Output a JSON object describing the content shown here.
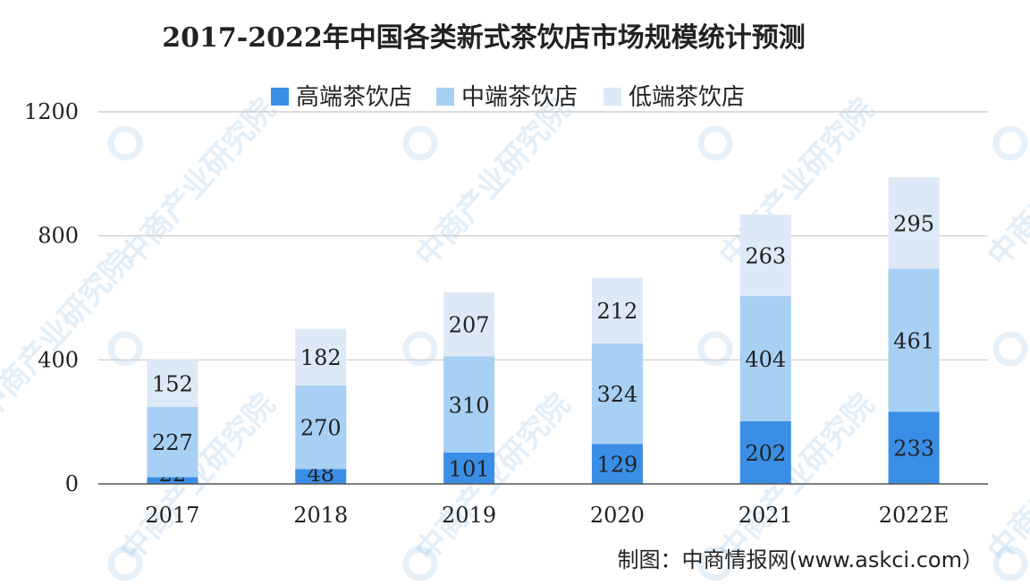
{
  "chart_data": {
    "type": "bar",
    "stacked": true,
    "title": "2017-2022年中国各类新式茶饮店市场规模统计预测",
    "categories": [
      "2017",
      "2018",
      "2019",
      "2020",
      "2021",
      "2022E"
    ],
    "series": [
      {
        "name": "高端茶饮店",
        "values": [
          22,
          48,
          101,
          129,
          202,
          233
        ],
        "color": "#3a8ee6"
      },
      {
        "name": "中端茶饮店",
        "values": [
          227,
          270,
          310,
          324,
          404,
          461
        ],
        "color": "#a8d0f4"
      },
      {
        "name": "低端茶饮店",
        "values": [
          152,
          182,
          207,
          212,
          263,
          295
        ],
        "color": "#dde9f6"
      }
    ],
    "ylim": [
      0,
      1200
    ],
    "yticks": [
      0,
      400,
      800,
      1200
    ],
    "grid": true,
    "legend": "top-center",
    "xlabel": "",
    "ylabel": ""
  },
  "source": "制图：中商情报网(www.askci.com）",
  "watermark": "中商产业研究院"
}
